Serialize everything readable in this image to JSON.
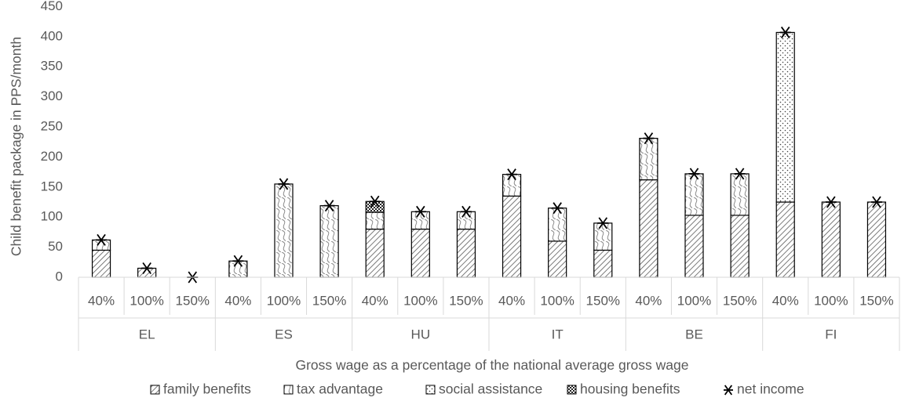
{
  "chart_data": {
    "type": "bar",
    "stacked": true,
    "title": "",
    "ylabel": "Child benefit package in PPS/month",
    "xlabel": "Gross wage as a percentage of the national average gross wage",
    "ylim": [
      0,
      450
    ],
    "yticks": [
      0,
      50,
      100,
      150,
      200,
      250,
      300,
      350,
      400,
      450
    ],
    "grid": false,
    "legend_position": "bottom",
    "groups": [
      {
        "name": "EL",
        "categories": [
          "40%",
          "100%",
          "150%"
        ]
      },
      {
        "name": "ES",
        "categories": [
          "40%",
          "100%",
          "150%"
        ]
      },
      {
        "name": "HU",
        "categories": [
          "40%",
          "100%",
          "150%"
        ]
      },
      {
        "name": "IT",
        "categories": [
          "40%",
          "100%",
          "150%"
        ]
      },
      {
        "name": "BE",
        "categories": [
          "40%",
          "100%",
          "150%"
        ]
      },
      {
        "name": "FI",
        "categories": [
          "40%",
          "100%",
          "150%"
        ]
      }
    ],
    "series": [
      {
        "name": "family benefits",
        "pattern": "diagonal-hatch",
        "values": [
          45,
          15,
          0,
          0,
          0,
          0,
          80,
          80,
          80,
          135,
          60,
          45,
          162,
          103,
          103,
          125,
          125,
          125
        ]
      },
      {
        "name": "tax advantage",
        "pattern": "wave",
        "values": [
          17,
          0,
          0,
          27,
          155,
          119,
          28,
          29,
          29,
          36,
          55,
          45,
          69,
          69,
          69,
          0,
          0,
          0
        ]
      },
      {
        "name": "social assistance",
        "pattern": "dots",
        "values": [
          0,
          0,
          0,
          0,
          0,
          0,
          0,
          0,
          0,
          0,
          0,
          0,
          0,
          0,
          0,
          282,
          0,
          0
        ]
      },
      {
        "name": "housing benefits",
        "pattern": "checker",
        "values": [
          0,
          0,
          0,
          0,
          0,
          0,
          18,
          0,
          0,
          0,
          0,
          0,
          0,
          0,
          0,
          0,
          0,
          0
        ]
      }
    ],
    "net_income": {
      "name": "net income",
      "marker": "asterisk",
      "values": [
        62,
        15,
        0,
        27,
        155,
        119,
        126,
        109,
        109,
        171,
        115,
        90,
        231,
        172,
        172,
        407,
        125,
        125
      ]
    }
  }
}
